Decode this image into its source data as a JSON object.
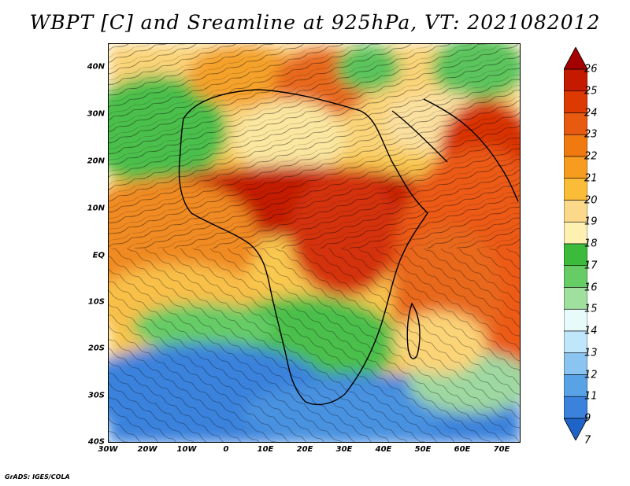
{
  "title": "WBPT [C] and Sreamline at 925hPa, VT: 2021082012",
  "credit": "GrADS: IGES/COLA",
  "x_tick_labels": [
    "30W",
    "20W",
    "10W",
    "0",
    "10E",
    "20E",
    "30E",
    "40E",
    "50E",
    "60E",
    "70E"
  ],
  "y_tick_labels": [
    "40N",
    "30N",
    "20N",
    "10N",
    "EQ",
    "10S",
    "20S",
    "30S",
    "40S"
  ],
  "colorbar": {
    "labels": [
      "26",
      "25",
      "24",
      "23",
      "22",
      "21",
      "20",
      "19",
      "18",
      "17",
      "16",
      "15",
      "14",
      "13",
      "12",
      "11",
      "9",
      "7"
    ],
    "colors": [
      "#a40000",
      "#c41a00",
      "#dc3a00",
      "#e85a10",
      "#f07a10",
      "#f89c20",
      "#fbbd38",
      "#fcd98a",
      "#fdf0b0",
      "#3cba3c",
      "#66cc66",
      "#9fe09f",
      "#e8fbfb",
      "#bfe6fb",
      "#8ac4f0",
      "#5aa2e6",
      "#3a82dc",
      "#1e64c8"
    ]
  },
  "map": {
    "region": "Africa and Indian Ocean",
    "lon_range": [
      -30,
      75
    ],
    "lat_range": [
      -40,
      45
    ],
    "fields": [
      "wet-bulb potential temperature",
      "925hPa streamlines"
    ]
  }
}
